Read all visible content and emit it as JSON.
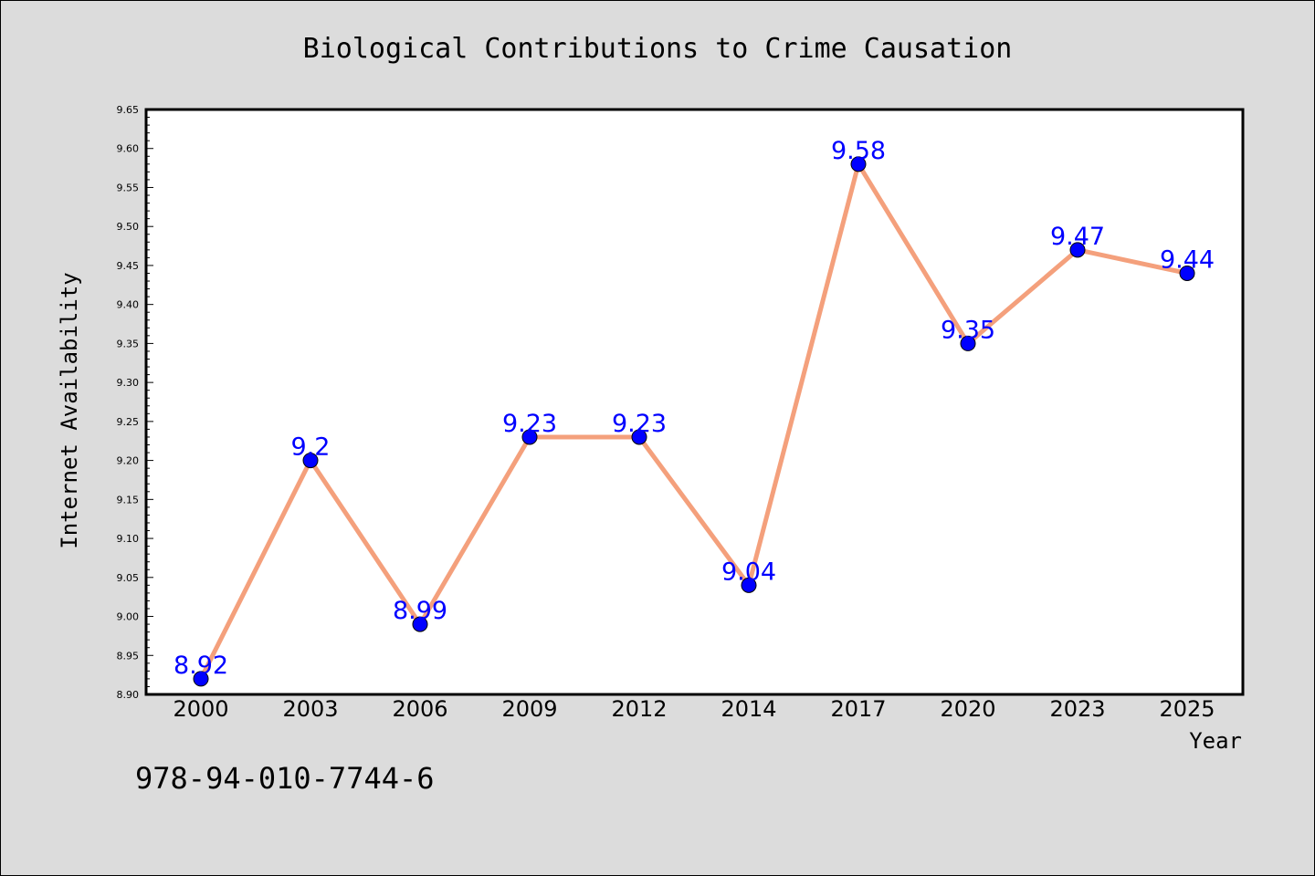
{
  "chart_data": {
    "type": "line",
    "title": "Biological Contributions to Crime Causation",
    "xlabel": "Year",
    "ylabel": "Internet Availability",
    "x": [
      "2000",
      "2003",
      "2006",
      "2009",
      "2012",
      "2014",
      "2017",
      "2020",
      "2023",
      "2025"
    ],
    "series": [
      {
        "values": [
          8.92,
          9.2,
          8.99,
          9.23,
          9.23,
          9.04,
          9.58,
          9.35,
          9.47,
          9.44
        ],
        "data_labels": [
          "8.92",
          "9.2",
          "8.99",
          "9.23",
          "9.23",
          "9.04",
          "9.58",
          "9.35",
          "9.47",
          "9.44"
        ],
        "line_color": "#f4a07c",
        "marker_color": "#0000ff"
      }
    ],
    "ylim": [
      8.9,
      9.65
    ],
    "yticks": [
      "8.90",
      "8.95",
      "9.00",
      "9.05",
      "9.10",
      "9.15",
      "9.20",
      "9.25",
      "9.30",
      "9.35",
      "9.40",
      "9.45",
      "9.50",
      "9.55",
      "9.60",
      "9.65"
    ],
    "grid": false,
    "legend": "none"
  },
  "footer_text": "978-94-010-7744-6",
  "colors": {
    "background": "#dcdcdc",
    "plot_background": "#ffffff",
    "label_color": "#0000ff"
  }
}
